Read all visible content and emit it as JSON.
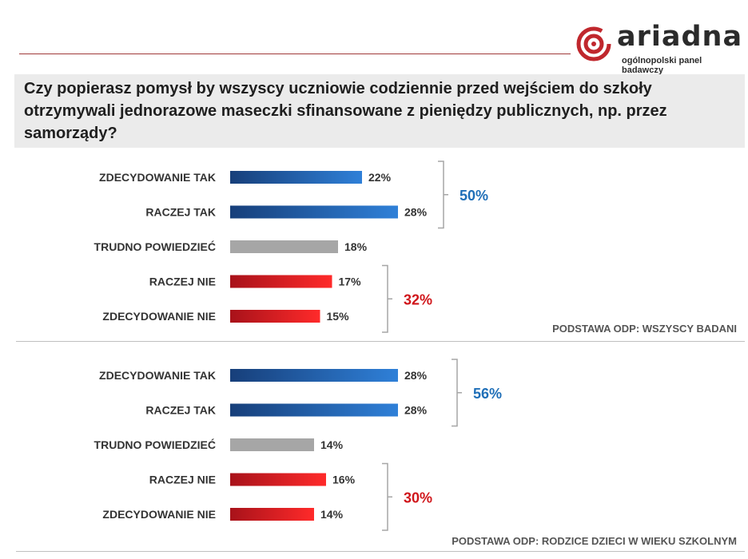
{
  "brand": {
    "name": "ariadna",
    "tagline": "ogólnopolski panel badawczy",
    "accent": "#c0272d"
  },
  "question": "Czy popierasz pomysł by  wszyscy uczniowie codziennie przed wejściem do szkoły otrzymywali jednorazowe maseczki sfinansowane z pieniędzy publicznych, np. przez samorządy?",
  "colors": {
    "positive": "#1f5fa8",
    "neutral": "#a6a6a6",
    "negative": "#d0161b",
    "positive_text": "#1f6fb8",
    "negative_text": "#d0161b"
  },
  "chart_data": [
    {
      "type": "bar",
      "orientation": "horizontal",
      "categories": [
        "ZDECYDOWANIE  TAK",
        "RACZEJ TAK",
        "TRUDNO  POWIEDZIEĆ",
        "RACZEJ NIE",
        "ZDECYDOWANIE  NIE"
      ],
      "values": [
        22,
        28,
        18,
        17,
        15
      ],
      "value_labels": [
        "22%",
        "28%",
        "18%",
        "17%",
        "15%"
      ],
      "groups": [
        {
          "label": "50%",
          "from": 0,
          "to": 1,
          "sentiment": "positive"
        },
        {
          "label": "32%",
          "from": 3,
          "to": 4,
          "sentiment": "negative"
        }
      ],
      "note": "PODSTAWA ODP: WSZYSCY BADANI"
    },
    {
      "type": "bar",
      "orientation": "horizontal",
      "categories": [
        "ZDECYDOWANIE  TAK",
        "RACZEJ TAK",
        "TRUDNO  POWIEDZIEĆ",
        "RACZEJ NIE",
        "ZDECYDOWANIE  NIE"
      ],
      "values": [
        28,
        28,
        14,
        16,
        14
      ],
      "value_labels": [
        "28%",
        "28%",
        "14%",
        "16%",
        "14%"
      ],
      "groups": [
        {
          "label": "56%",
          "from": 0,
          "to": 1,
          "sentiment": "positive"
        },
        {
          "label": "30%",
          "from": 3,
          "to": 4,
          "sentiment": "negative"
        }
      ],
      "note": "PODSTAWA ODP: RODZICE DZIECI W WIEKU SZKOLNYM"
    }
  ]
}
